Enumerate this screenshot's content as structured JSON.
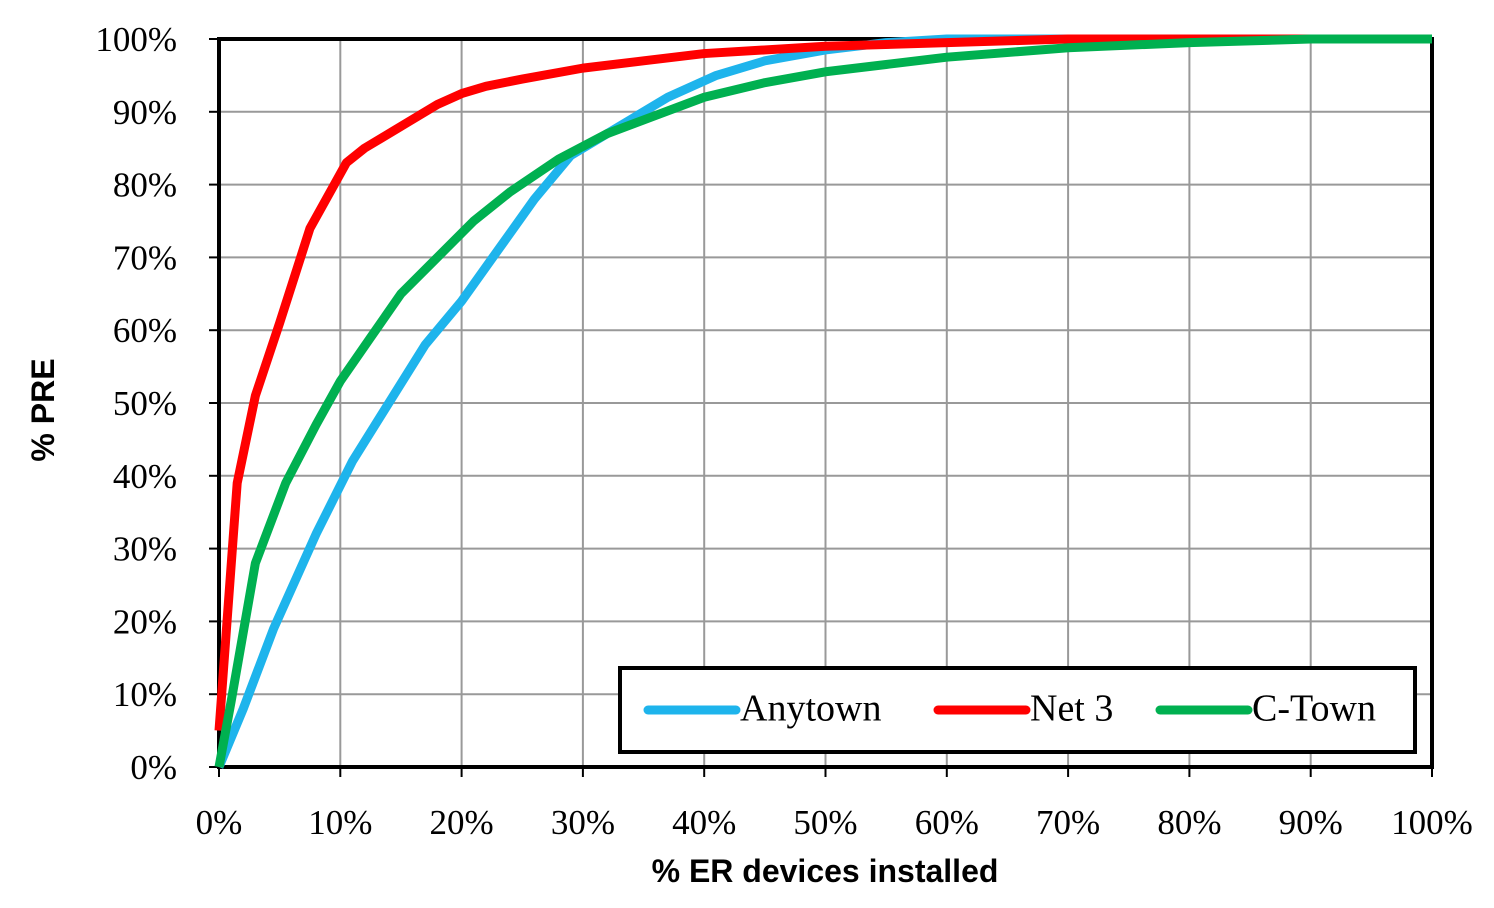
{
  "chart_data": {
    "type": "line",
    "x_label": "% ER devices installed",
    "y_label": "% PRE",
    "xlim": [
      0,
      100
    ],
    "ylim": [
      0,
      100
    ],
    "xticks": [
      {
        "value": 0,
        "label": "0%"
      },
      {
        "value": 10,
        "label": "10%"
      },
      {
        "value": 20,
        "label": "20%"
      },
      {
        "value": 30,
        "label": "30%"
      },
      {
        "value": 40,
        "label": "40%"
      },
      {
        "value": 50,
        "label": "50%"
      },
      {
        "value": 60,
        "label": "60%"
      },
      {
        "value": 70,
        "label": "70%"
      },
      {
        "value": 80,
        "label": "80%"
      },
      {
        "value": 90,
        "label": "90%"
      },
      {
        "value": 100,
        "label": "100%"
      }
    ],
    "yticks": [
      {
        "value": 0,
        "label": "0%"
      },
      {
        "value": 10,
        "label": "10%"
      },
      {
        "value": 20,
        "label": "20%"
      },
      {
        "value": 30,
        "label": "30%"
      },
      {
        "value": 40,
        "label": "40%"
      },
      {
        "value": 50,
        "label": "50%"
      },
      {
        "value": 60,
        "label": "60%"
      },
      {
        "value": 70,
        "label": "70%"
      },
      {
        "value": 80,
        "label": "80%"
      },
      {
        "value": 90,
        "label": "90%"
      },
      {
        "value": 100,
        "label": "100%"
      }
    ],
    "grid": true,
    "legend": "bottom-right",
    "series": [
      {
        "name": "Anytown",
        "color": "#1eb4ec",
        "x": [
          0,
          2,
          4.5,
          8,
          11,
          14,
          17,
          20,
          23,
          26,
          29,
          33,
          37,
          41,
          45,
          50,
          55,
          60,
          100
        ],
        "values": [
          0,
          8,
          19,
          32,
          42,
          50,
          58,
          64,
          71,
          78,
          84,
          88,
          92,
          95,
          97,
          98.5,
          99.5,
          100,
          100
        ]
      },
      {
        "name": "Net 3",
        "color": "#ff0000",
        "x": [
          0,
          1.5,
          3,
          5,
          7.5,
          10.5,
          12,
          15,
          18,
          20,
          22,
          25,
          30,
          35,
          40,
          50,
          60,
          70,
          100
        ],
        "values": [
          5,
          39,
          51,
          61,
          74,
          83,
          85,
          88,
          91,
          92.5,
          93.5,
          94.5,
          96,
          97,
          98,
          99,
          99.5,
          100,
          100
        ]
      },
      {
        "name": "C-Town",
        "color": "#00b050",
        "x": [
          0,
          1,
          3,
          5.5,
          8,
          10,
          12.5,
          15,
          18,
          21,
          24,
          28,
          32,
          36,
          40,
          45,
          50,
          55,
          60,
          70,
          80,
          90,
          100
        ],
        "values": [
          0,
          9,
          28,
          39,
          47,
          53,
          59,
          65,
          70,
          75,
          79,
          83.5,
          87,
          89.5,
          92,
          94,
          95.5,
          96.5,
          97.5,
          98.8,
          99.5,
          100,
          100
        ]
      }
    ]
  }
}
